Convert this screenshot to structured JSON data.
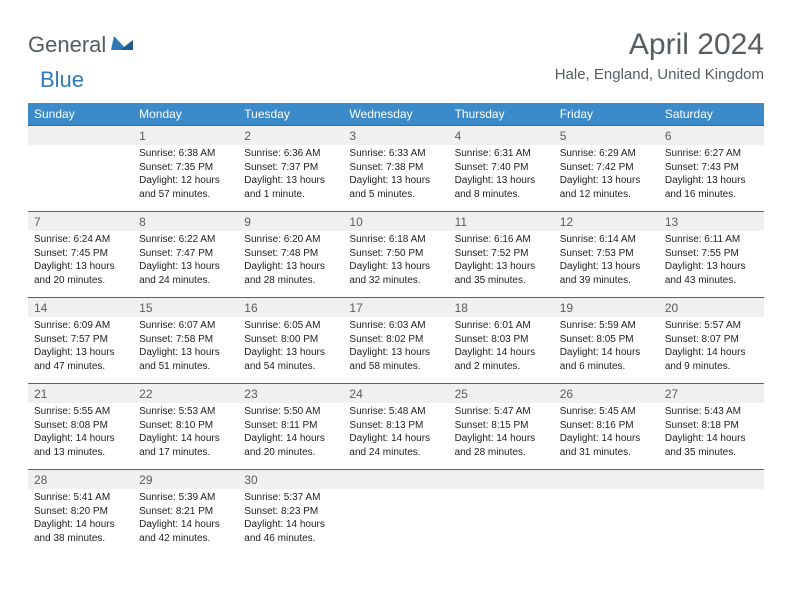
{
  "brand": {
    "text1": "General",
    "text2": "Blue"
  },
  "title": "April 2024",
  "location": "Hale, England, United Kingdom",
  "day_headers": [
    "Sunday",
    "Monday",
    "Tuesday",
    "Wednesday",
    "Thursday",
    "Friday",
    "Saturday"
  ],
  "colors": {
    "header_bg": "#3b8bca",
    "header_text": "#ffffff",
    "daynum_bg": "#f0f0f0",
    "border": "#2f6ea5",
    "title_text": "#575d61",
    "logo_grey": "#555c60",
    "logo_blue": "#2f79b9"
  },
  "weeks": [
    [
      {
        "n": "",
        "lines": []
      },
      {
        "n": "1",
        "lines": [
          "Sunrise: 6:38 AM",
          "Sunset: 7:35 PM",
          "Daylight: 12 hours and 57 minutes."
        ]
      },
      {
        "n": "2",
        "lines": [
          "Sunrise: 6:36 AM",
          "Sunset: 7:37 PM",
          "Daylight: 13 hours and 1 minute."
        ]
      },
      {
        "n": "3",
        "lines": [
          "Sunrise: 6:33 AM",
          "Sunset: 7:38 PM",
          "Daylight: 13 hours and 5 minutes."
        ]
      },
      {
        "n": "4",
        "lines": [
          "Sunrise: 6:31 AM",
          "Sunset: 7:40 PM",
          "Daylight: 13 hours and 8 minutes."
        ]
      },
      {
        "n": "5",
        "lines": [
          "Sunrise: 6:29 AM",
          "Sunset: 7:42 PM",
          "Daylight: 13 hours and 12 minutes."
        ]
      },
      {
        "n": "6",
        "lines": [
          "Sunrise: 6:27 AM",
          "Sunset: 7:43 PM",
          "Daylight: 13 hours and 16 minutes."
        ]
      }
    ],
    [
      {
        "n": "7",
        "lines": [
          "Sunrise: 6:24 AM",
          "Sunset: 7:45 PM",
          "Daylight: 13 hours and 20 minutes."
        ]
      },
      {
        "n": "8",
        "lines": [
          "Sunrise: 6:22 AM",
          "Sunset: 7:47 PM",
          "Daylight: 13 hours and 24 minutes."
        ]
      },
      {
        "n": "9",
        "lines": [
          "Sunrise: 6:20 AM",
          "Sunset: 7:48 PM",
          "Daylight: 13 hours and 28 minutes."
        ]
      },
      {
        "n": "10",
        "lines": [
          "Sunrise: 6:18 AM",
          "Sunset: 7:50 PM",
          "Daylight: 13 hours and 32 minutes."
        ]
      },
      {
        "n": "11",
        "lines": [
          "Sunrise: 6:16 AM",
          "Sunset: 7:52 PM",
          "Daylight: 13 hours and 35 minutes."
        ]
      },
      {
        "n": "12",
        "lines": [
          "Sunrise: 6:14 AM",
          "Sunset: 7:53 PM",
          "Daylight: 13 hours and 39 minutes."
        ]
      },
      {
        "n": "13",
        "lines": [
          "Sunrise: 6:11 AM",
          "Sunset: 7:55 PM",
          "Daylight: 13 hours and 43 minutes."
        ]
      }
    ],
    [
      {
        "n": "14",
        "lines": [
          "Sunrise: 6:09 AM",
          "Sunset: 7:57 PM",
          "Daylight: 13 hours and 47 minutes."
        ]
      },
      {
        "n": "15",
        "lines": [
          "Sunrise: 6:07 AM",
          "Sunset: 7:58 PM",
          "Daylight: 13 hours and 51 minutes."
        ]
      },
      {
        "n": "16",
        "lines": [
          "Sunrise: 6:05 AM",
          "Sunset: 8:00 PM",
          "Daylight: 13 hours and 54 minutes."
        ]
      },
      {
        "n": "17",
        "lines": [
          "Sunrise: 6:03 AM",
          "Sunset: 8:02 PM",
          "Daylight: 13 hours and 58 minutes."
        ]
      },
      {
        "n": "18",
        "lines": [
          "Sunrise: 6:01 AM",
          "Sunset: 8:03 PM",
          "Daylight: 14 hours and 2 minutes."
        ]
      },
      {
        "n": "19",
        "lines": [
          "Sunrise: 5:59 AM",
          "Sunset: 8:05 PM",
          "Daylight: 14 hours and 6 minutes."
        ]
      },
      {
        "n": "20",
        "lines": [
          "Sunrise: 5:57 AM",
          "Sunset: 8:07 PM",
          "Daylight: 14 hours and 9 minutes."
        ]
      }
    ],
    [
      {
        "n": "21",
        "lines": [
          "Sunrise: 5:55 AM",
          "Sunset: 8:08 PM",
          "Daylight: 14 hours and 13 minutes."
        ]
      },
      {
        "n": "22",
        "lines": [
          "Sunrise: 5:53 AM",
          "Sunset: 8:10 PM",
          "Daylight: 14 hours and 17 minutes."
        ]
      },
      {
        "n": "23",
        "lines": [
          "Sunrise: 5:50 AM",
          "Sunset: 8:11 PM",
          "Daylight: 14 hours and 20 minutes."
        ]
      },
      {
        "n": "24",
        "lines": [
          "Sunrise: 5:48 AM",
          "Sunset: 8:13 PM",
          "Daylight: 14 hours and 24 minutes."
        ]
      },
      {
        "n": "25",
        "lines": [
          "Sunrise: 5:47 AM",
          "Sunset: 8:15 PM",
          "Daylight: 14 hours and 28 minutes."
        ]
      },
      {
        "n": "26",
        "lines": [
          "Sunrise: 5:45 AM",
          "Sunset: 8:16 PM",
          "Daylight: 14 hours and 31 minutes."
        ]
      },
      {
        "n": "27",
        "lines": [
          "Sunrise: 5:43 AM",
          "Sunset: 8:18 PM",
          "Daylight: 14 hours and 35 minutes."
        ]
      }
    ],
    [
      {
        "n": "28",
        "lines": [
          "Sunrise: 5:41 AM",
          "Sunset: 8:20 PM",
          "Daylight: 14 hours and 38 minutes."
        ]
      },
      {
        "n": "29",
        "lines": [
          "Sunrise: 5:39 AM",
          "Sunset: 8:21 PM",
          "Daylight: 14 hours and 42 minutes."
        ]
      },
      {
        "n": "30",
        "lines": [
          "Sunrise: 5:37 AM",
          "Sunset: 8:23 PM",
          "Daylight: 14 hours and 46 minutes."
        ]
      },
      {
        "n": "",
        "lines": []
      },
      {
        "n": "",
        "lines": []
      },
      {
        "n": "",
        "lines": []
      },
      {
        "n": "",
        "lines": []
      }
    ]
  ]
}
